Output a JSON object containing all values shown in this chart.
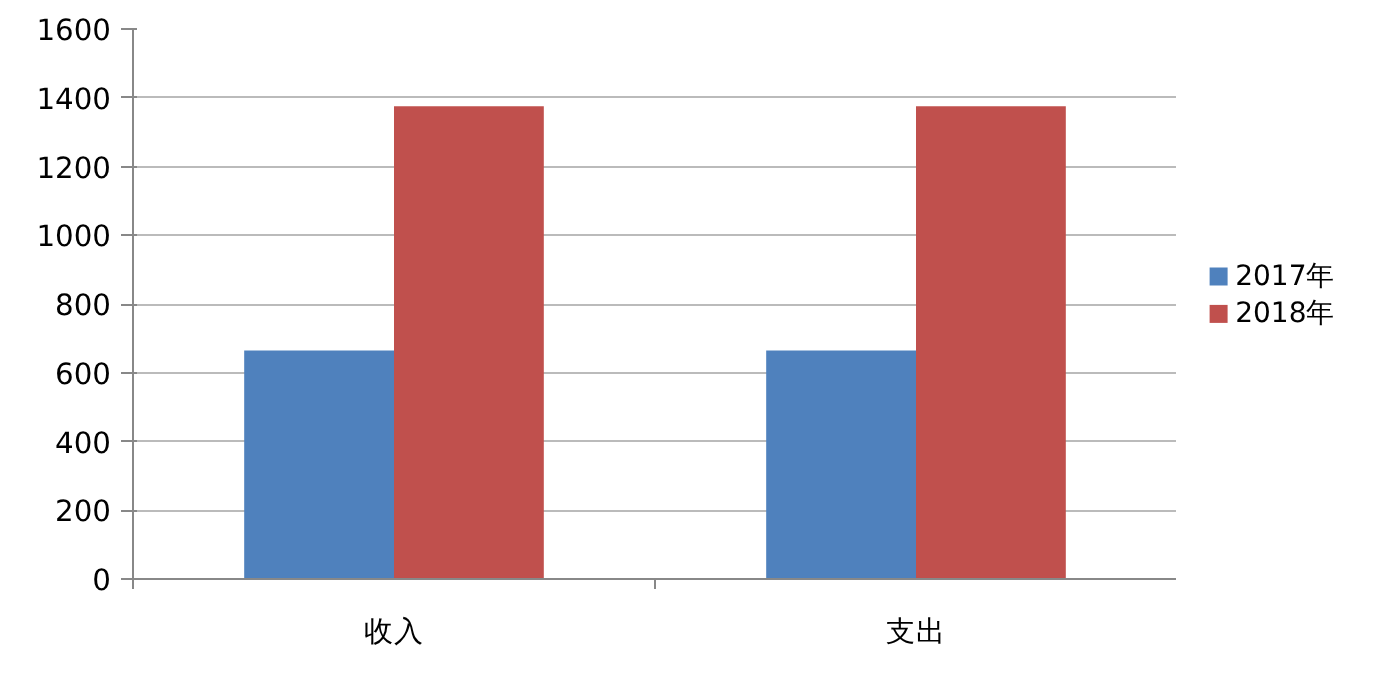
{
  "chart_data": {
    "type": "bar",
    "categories": [
      "收入",
      "支出"
    ],
    "series": [
      {
        "name": "2017年",
        "color": "#4f81bd",
        "values": [
          665,
          665
        ]
      },
      {
        "name": "2018年",
        "color": "#c0504d",
        "values": [
          1375,
          1375
        ]
      }
    ],
    "ylim": [
      0,
      1600
    ],
    "yticks": [
      0,
      200,
      400,
      600,
      800,
      1000,
      1200,
      1400,
      1600
    ],
    "grid": "y",
    "legend": "right"
  }
}
